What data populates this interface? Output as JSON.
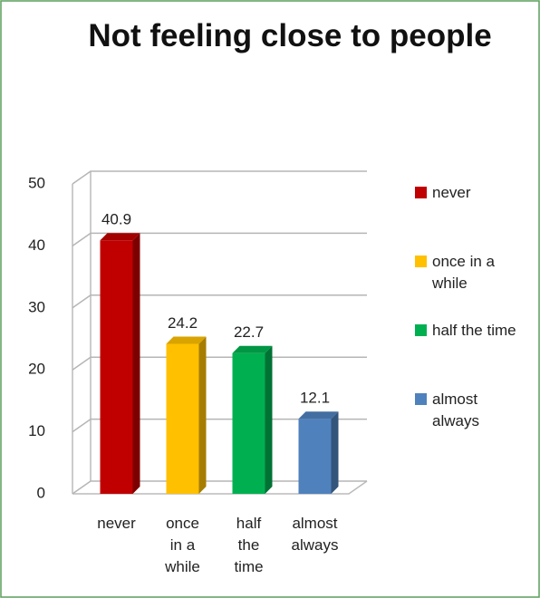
{
  "chart_data": {
    "type": "bar3d",
    "title": "Not feeling close to people",
    "categories": [
      "never",
      "once in a while",
      "half the time",
      "almost always"
    ],
    "values": [
      40.9,
      24.2,
      22.7,
      12.1
    ],
    "colors": [
      "#c00000",
      "#ffc000",
      "#00b050",
      "#4f81bd"
    ],
    "ylim": [
      0,
      50
    ],
    "yticks": [
      0,
      10,
      20,
      30,
      40,
      50
    ],
    "grid": true,
    "legend": "right"
  }
}
